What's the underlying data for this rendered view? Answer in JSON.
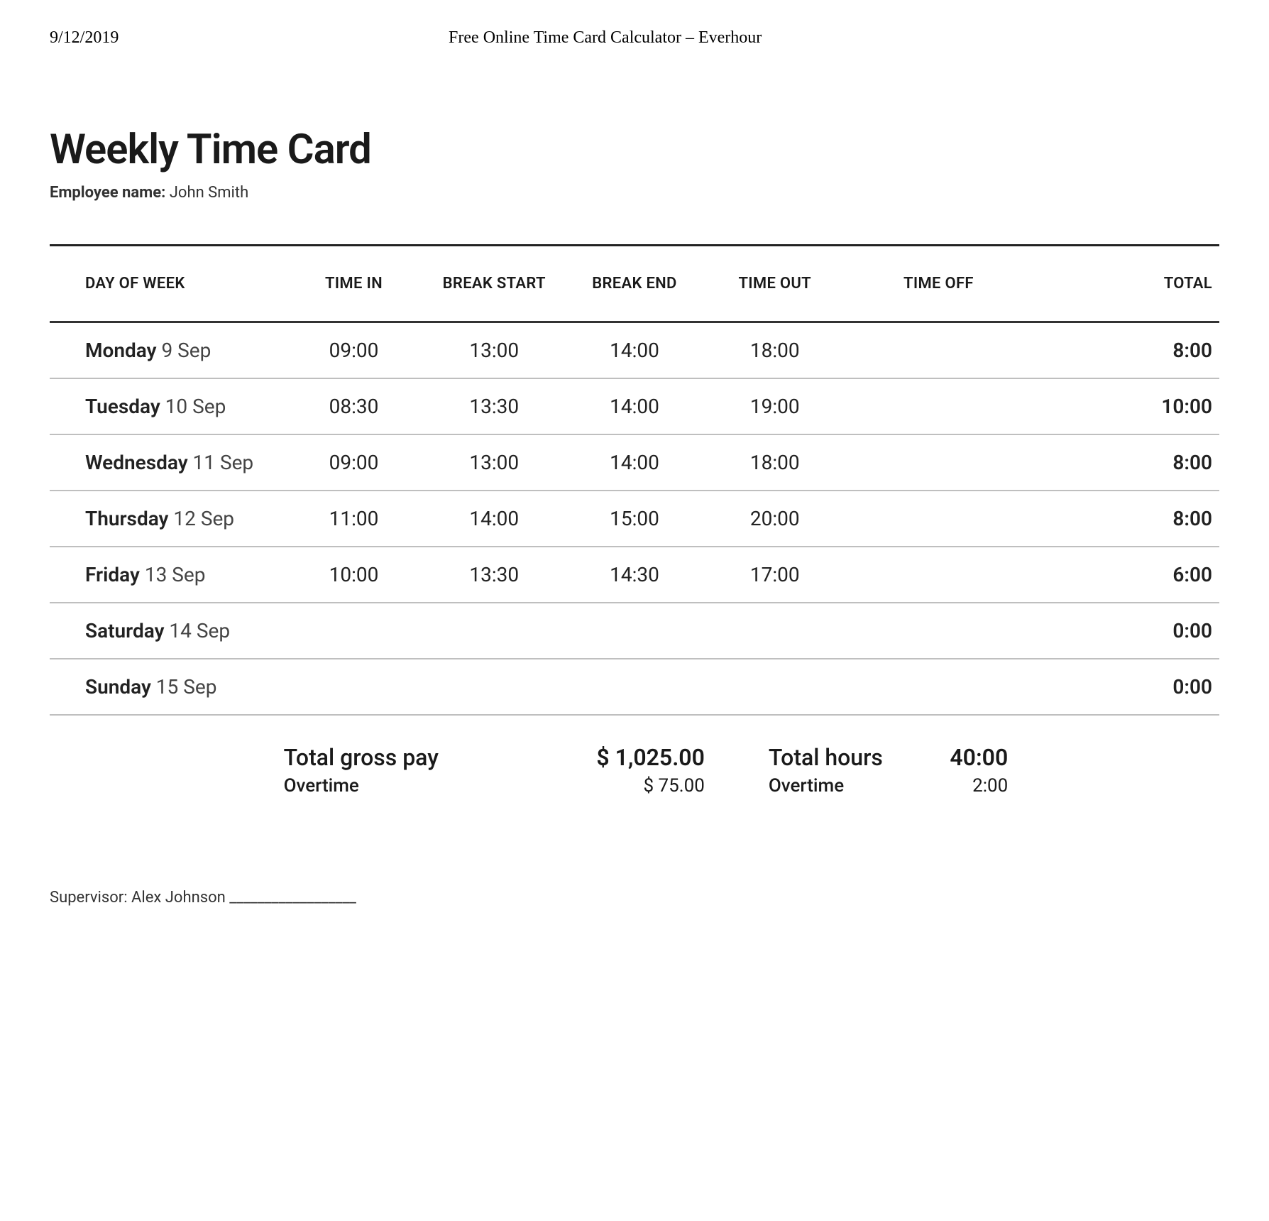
{
  "doc_header": {
    "date": "9/12/2019",
    "title": "Free Online Time Card Calculator – Everhour"
  },
  "title": "Weekly Time Card",
  "employee": {
    "label": "Employee name:",
    "value": "John Smith"
  },
  "table": {
    "type": "table",
    "columns": [
      "DAY OF WEEK",
      "TIME IN",
      "BREAK START",
      "BREAK END",
      "TIME OUT",
      "TIME OFF",
      "TOTAL"
    ],
    "rows": [
      {
        "dayname": "Monday",
        "daydate": "9 Sep",
        "time_in": "09:00",
        "break_start": "13:00",
        "break_end": "14:00",
        "time_out": "18:00",
        "time_off": "",
        "total": "8:00"
      },
      {
        "dayname": "Tuesday",
        "daydate": "10 Sep",
        "time_in": "08:30",
        "break_start": "13:30",
        "break_end": "14:00",
        "time_out": "19:00",
        "time_off": "",
        "total": "10:00"
      },
      {
        "dayname": "Wednesday",
        "daydate": "11 Sep",
        "time_in": "09:00",
        "break_start": "13:00",
        "break_end": "14:00",
        "time_out": "18:00",
        "time_off": "",
        "total": "8:00"
      },
      {
        "dayname": "Thursday",
        "daydate": "12 Sep",
        "time_in": "11:00",
        "break_start": "14:00",
        "break_end": "15:00",
        "time_out": "20:00",
        "time_off": "",
        "total": "8:00"
      },
      {
        "dayname": "Friday",
        "daydate": "13 Sep",
        "time_in": "10:00",
        "break_start": "13:30",
        "break_end": "14:30",
        "time_out": "17:00",
        "time_off": "",
        "total": "6:00"
      },
      {
        "dayname": "Saturday",
        "daydate": "14 Sep",
        "time_in": "",
        "break_start": "",
        "break_end": "",
        "time_out": "",
        "time_off": "",
        "total": "0:00"
      },
      {
        "dayname": "Sunday",
        "daydate": "15 Sep",
        "time_in": "",
        "break_start": "",
        "break_end": "",
        "time_out": "",
        "time_off": "",
        "total": "0:00"
      }
    ],
    "col_widths_pct": [
      20,
      12,
      12,
      12,
      12,
      16,
      16
    ],
    "header_fontsize_pt": 16,
    "body_fontsize_pt": 21,
    "border_top_color": "#222222",
    "header_border_color": "#333333",
    "row_border_color": "#bfbfbf",
    "background_color": "#ffffff"
  },
  "totals": {
    "gross_pay": {
      "label": "Total gross pay",
      "value": "$ 1,025.00"
    },
    "pay_overtime": {
      "label": "Overtime",
      "value": "$ 75.00"
    },
    "total_hours": {
      "label": "Total hours",
      "value": "40:00"
    },
    "hours_overtime": {
      "label": "Overtime",
      "value": "2:00"
    }
  },
  "supervisor": {
    "label": "Supervisor:",
    "value": "Alex Johnson",
    "line": "__________________"
  },
  "colors": {
    "text": "#1a1a1a",
    "muted": "#444444",
    "background": "#ffffff"
  },
  "typography": {
    "title_fontsize_pt": 44,
    "body_font": "-apple-system / Helvetica / Arial"
  }
}
